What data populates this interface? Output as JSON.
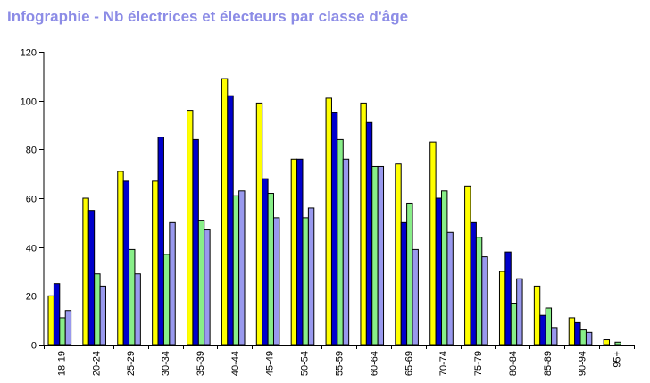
{
  "title": "Infographie - Nb électrices et électeurs par classe d'âge",
  "colors": {
    "title": "#8c8ce6",
    "series": [
      "#ffff00",
      "#0000cc",
      "#88ee88",
      "#9999ee"
    ]
  },
  "chart_data": {
    "type": "bar",
    "title": "Infographie - Nb électrices et électeurs par classe d'âge",
    "xlabel": "",
    "ylabel": "",
    "ylim": [
      0,
      120
    ],
    "yticks": [
      0,
      20,
      40,
      60,
      80,
      100,
      120
    ],
    "grid": false,
    "legend": "none",
    "categories": [
      "18-19",
      "20-24",
      "25-29",
      "30-34",
      "35-39",
      "40-44",
      "45-49",
      "50-54",
      "55-59",
      "60-64",
      "65-69",
      "70-74",
      "75-79",
      "80-84",
      "85-89",
      "90-94",
      "95+"
    ],
    "series": [
      {
        "color": "#ffff00",
        "values": [
          20,
          60,
          71,
          67,
          96,
          109,
          99,
          76,
          101,
          99,
          74,
          83,
          65,
          30,
          24,
          11,
          2
        ]
      },
      {
        "color": "#0000cc",
        "values": [
          25,
          55,
          67,
          85,
          84,
          102,
          68,
          76,
          95,
          91,
          50,
          60,
          50,
          38,
          12,
          9,
          0
        ]
      },
      {
        "color": "#88ee88",
        "values": [
          11,
          29,
          39,
          37,
          51,
          61,
          62,
          52,
          84,
          73,
          58,
          63,
          44,
          17,
          15,
          6,
          1
        ]
      },
      {
        "color": "#9999ee",
        "values": [
          14,
          24,
          29,
          50,
          47,
          63,
          52,
          56,
          76,
          73,
          39,
          46,
          36,
          27,
          7,
          5,
          0
        ]
      }
    ]
  }
}
